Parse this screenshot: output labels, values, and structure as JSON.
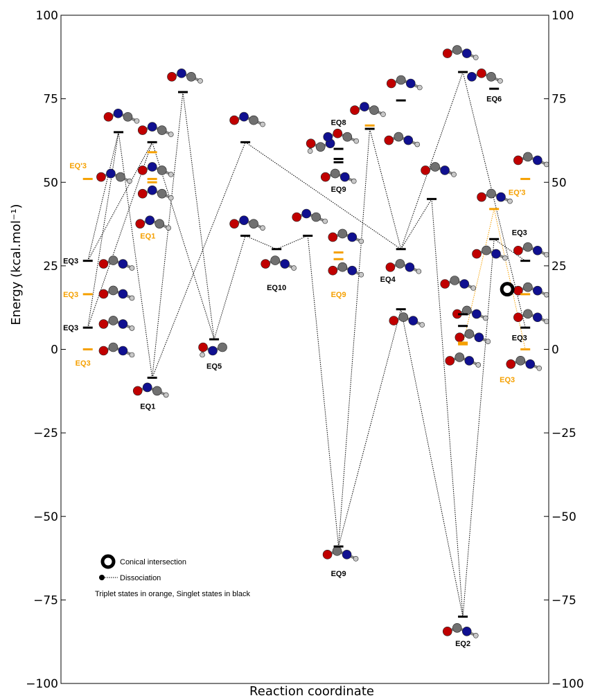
{
  "chart_data": {
    "type": "energy-diagram",
    "xlabel": "Reaction coordinate",
    "ylabel": "Energy (kcal.mol⁻¹)",
    "ylim": [
      -100,
      100
    ],
    "yticks": [
      -100,
      -75,
      -50,
      -25,
      0,
      25,
      50,
      75,
      100
    ],
    "ytick_labels": [
      "−100",
      "−75",
      "−50",
      "−25",
      "0",
      "25",
      "50",
      "75",
      "100"
    ],
    "x_range": [
      0,
      100
    ],
    "colors": {
      "singlet": "#000000",
      "triplet": "#f5a000",
      "N": "#101090",
      "O": "#c00000",
      "C": "#707070",
      "H": "#c8c8c8"
    },
    "levels": [
      {
        "id": "L1",
        "x": 5.5,
        "e": 26.5,
        "spin": "singlet"
      },
      {
        "id": "L2",
        "x": 5.5,
        "e": 16.5,
        "spin": "triplet"
      },
      {
        "id": "L3",
        "x": 5.5,
        "e": 6.5,
        "spin": "singlet"
      },
      {
        "id": "L4",
        "x": 5.5,
        "e": 0,
        "spin": "triplet"
      },
      {
        "id": "L5",
        "x": 5.5,
        "e": 51,
        "spin": "triplet"
      },
      {
        "id": "L6",
        "x": 11.8,
        "e": 65,
        "spin": "singlet"
      },
      {
        "id": "L7",
        "x": 18.7,
        "e": 62,
        "spin": "singlet"
      },
      {
        "id": "L8",
        "x": 18.7,
        "e": 59,
        "spin": "triplet"
      },
      {
        "id": "L9",
        "x": 18.7,
        "e": 51,
        "spin": "triplet"
      },
      {
        "id": "L10",
        "x": 18.7,
        "e": 50,
        "spin": "triplet"
      },
      {
        "id": "L11",
        "x": 18.7,
        "e": -8.5,
        "spin": "singlet"
      },
      {
        "id": "L12",
        "x": 25,
        "e": 77,
        "spin": "singlet"
      },
      {
        "id": "L13",
        "x": 31.4,
        "e": 3,
        "spin": "singlet"
      },
      {
        "id": "L14",
        "x": 37.8,
        "e": 62,
        "spin": "singlet"
      },
      {
        "id": "L15",
        "x": 37.8,
        "e": 34,
        "spin": "singlet"
      },
      {
        "id": "L16",
        "x": 44.2,
        "e": 30,
        "spin": "singlet"
      },
      {
        "id": "L17",
        "x": 50.6,
        "e": 34,
        "spin": "singlet"
      },
      {
        "id": "L18",
        "x": 56.9,
        "e": 60,
        "spin": "singlet"
      },
      {
        "id": "L19",
        "x": 56.9,
        "e": 57,
        "spin": "singlet"
      },
      {
        "id": "L20",
        "x": 56.9,
        "e": 56,
        "spin": "singlet"
      },
      {
        "id": "L21",
        "x": 56.9,
        "e": 29,
        "spin": "triplet"
      },
      {
        "id": "L22",
        "x": 56.9,
        "e": 27,
        "spin": "triplet"
      },
      {
        "id": "L23",
        "x": 56.9,
        "e": -59,
        "spin": "singlet"
      },
      {
        "id": "L24",
        "x": 63.3,
        "e": 67,
        "spin": "triplet"
      },
      {
        "id": "L25",
        "x": 63.3,
        "e": 66,
        "spin": "singlet"
      },
      {
        "id": "L26",
        "x": 69.7,
        "e": 74.5,
        "spin": "singlet"
      },
      {
        "id": "L27",
        "x": 69.7,
        "e": 30,
        "spin": "singlet"
      },
      {
        "id": "L28",
        "x": 69.7,
        "e": 12,
        "spin": "singlet"
      },
      {
        "id": "L29",
        "x": 76,
        "e": 45,
        "spin": "singlet"
      },
      {
        "id": "L30",
        "x": 82.4,
        "e": 83,
        "spin": "singlet"
      },
      {
        "id": "L31",
        "x": 82.4,
        "e": 10.5,
        "spin": "singlet"
      },
      {
        "id": "L32",
        "x": 82.4,
        "e": 7,
        "spin": "singlet"
      },
      {
        "id": "L33",
        "x": 82.4,
        "e": 2,
        "spin": "triplet"
      },
      {
        "id": "L34",
        "x": 82.4,
        "e": 1.5,
        "spin": "triplet"
      },
      {
        "id": "L35",
        "x": 82.4,
        "e": -80,
        "spin": "singlet"
      },
      {
        "id": "L36",
        "x": 88.8,
        "e": 78,
        "spin": "singlet"
      },
      {
        "id": "L37",
        "x": 88.8,
        "e": 42,
        "spin": "triplet"
      },
      {
        "id": "L38",
        "x": 88.8,
        "e": 33,
        "spin": "singlet"
      },
      {
        "id": "L39",
        "x": 95.2,
        "e": 51,
        "spin": "triplet"
      },
      {
        "id": "L40",
        "x": 95.2,
        "e": 26.5,
        "spin": "singlet"
      },
      {
        "id": "L41",
        "x": 95.2,
        "e": 16.5,
        "spin": "triplet"
      },
      {
        "id": "L42",
        "x": 95.2,
        "e": 6.5,
        "spin": "singlet"
      },
      {
        "id": "L43",
        "x": 95.2,
        "e": 0,
        "spin": "triplet"
      }
    ],
    "connections": [
      {
        "from": [
          5.5,
          26.5
        ],
        "to": [
          11.8,
          65
        ],
        "spin": "singlet"
      },
      {
        "from": [
          5.5,
          6.5
        ],
        "to": [
          11.8,
          65
        ],
        "spin": "singlet"
      },
      {
        "from": [
          11.8,
          65
        ],
        "to": [
          18.7,
          -8.5
        ],
        "spin": "singlet"
      },
      {
        "from": [
          5.5,
          26.5
        ],
        "to": [
          18.7,
          62
        ],
        "spin": "singlet"
      },
      {
        "from": [
          5.5,
          6.5
        ],
        "to": [
          18.7,
          62
        ],
        "spin": "singlet"
      },
      {
        "from": [
          18.7,
          62
        ],
        "to": [
          31.4,
          3
        ],
        "spin": "singlet"
      },
      {
        "from": [
          18.7,
          -8.5
        ],
        "to": [
          25,
          77
        ],
        "spin": "singlet"
      },
      {
        "from": [
          25,
          77
        ],
        "to": [
          31.4,
          3
        ],
        "spin": "singlet"
      },
      {
        "from": [
          18.7,
          -8.5
        ],
        "to": [
          37.8,
          62
        ],
        "spin": "singlet"
      },
      {
        "from": [
          31.4,
          3
        ],
        "to": [
          37.8,
          34
        ],
        "spin": "singlet"
      },
      {
        "from": [
          37.8,
          34
        ],
        "to": [
          44.2,
          30
        ],
        "spin": "singlet"
      },
      {
        "from": [
          44.2,
          30
        ],
        "to": [
          50.6,
          34
        ],
        "spin": "singlet"
      },
      {
        "from": [
          50.6,
          34
        ],
        "to": [
          56.9,
          -59
        ],
        "spin": "singlet"
      },
      {
        "from": [
          56.9,
          -59
        ],
        "to": [
          63.3,
          66
        ],
        "spin": "singlet"
      },
      {
        "from": [
          56.9,
          -59
        ],
        "to": [
          69.7,
          12
        ],
        "spin": "singlet"
      },
      {
        "from": [
          37.8,
          62
        ],
        "to": [
          69.7,
          30
        ],
        "spin": "singlet"
      },
      {
        "from": [
          63.3,
          66
        ],
        "to": [
          69.7,
          30
        ],
        "spin": "singlet"
      },
      {
        "from": [
          69.7,
          30
        ],
        "to": [
          76,
          45
        ],
        "spin": "singlet"
      },
      {
        "from": [
          69.7,
          30
        ],
        "to": [
          82.4,
          83
        ],
        "spin": "singlet"
      },
      {
        "from": [
          76,
          45
        ],
        "to": [
          82.4,
          -80
        ],
        "spin": "singlet"
      },
      {
        "from": [
          69.7,
          12
        ],
        "to": [
          82.4,
          -80
        ],
        "spin": "singlet"
      },
      {
        "from": [
          82.4,
          83
        ],
        "to": [
          95.2,
          6.5
        ],
        "spin": "singlet"
      },
      {
        "from": [
          82.4,
          -80
        ],
        "to": [
          88.8,
          33
        ],
        "spin": "singlet"
      },
      {
        "from": [
          88.8,
          33
        ],
        "to": [
          95.2,
          26.5
        ],
        "spin": "singlet"
      },
      {
        "from": [
          82.4,
          1.5
        ],
        "to": [
          88.8,
          42
        ],
        "spin": "triplet"
      },
      {
        "from": [
          88.8,
          42
        ],
        "to": [
          95.2,
          0
        ],
        "spin": "triplet"
      }
    ],
    "labels": [
      {
        "text": "EQ3",
        "x": 2,
        "e": 26.5,
        "spin": "singlet"
      },
      {
        "text": "EQ3",
        "x": 2,
        "e": 16.5,
        "spin": "triplet"
      },
      {
        "text": "EQ3",
        "x": 2,
        "e": 6.5,
        "spin": "singlet"
      },
      {
        "text": "EQ3",
        "x": 4.5,
        "e": -4,
        "spin": "triplet"
      },
      {
        "text": "EQ'3",
        "x": 3.5,
        "e": 55,
        "spin": "triplet"
      },
      {
        "text": "EQ1",
        "x": 17.8,
        "e": 34,
        "spin": "triplet"
      },
      {
        "text": "EQ1",
        "x": 17.8,
        "e": -17,
        "spin": "singlet"
      },
      {
        "text": "EQ5",
        "x": 31.4,
        "e": -5,
        "spin": "singlet"
      },
      {
        "text": "EQ10",
        "x": 44.2,
        "e": 18.5,
        "spin": "singlet"
      },
      {
        "text": "EQ8",
        "x": 56.9,
        "e": 68,
        "spin": "singlet"
      },
      {
        "text": "EQ9",
        "x": 56.9,
        "e": 48,
        "spin": "singlet"
      },
      {
        "text": "EQ9",
        "x": 56.9,
        "e": 16.5,
        "spin": "triplet"
      },
      {
        "text": "EQ9",
        "x": 56.9,
        "e": -67,
        "spin": "singlet"
      },
      {
        "text": "EQ4",
        "x": 67,
        "e": 21,
        "spin": "singlet"
      },
      {
        "text": "EQ6",
        "x": 88.8,
        "e": 75,
        "spin": "singlet"
      },
      {
        "text": "EQ2",
        "x": 82.4,
        "e": -88,
        "spin": "singlet"
      },
      {
        "text": "EQ'3",
        "x": 93.5,
        "e": 47,
        "spin": "triplet"
      },
      {
        "text": "EQ3",
        "x": 94,
        "e": 35,
        "spin": "singlet"
      },
      {
        "text": "EQ3",
        "x": 94,
        "e": 3.5,
        "spin": "singlet"
      },
      {
        "text": "EQ3",
        "x": 91.5,
        "e": -9,
        "spin": "triplet"
      }
    ],
    "conical_intersection": {
      "x": 91.5,
      "e": 18
    },
    "molecules": [
      {
        "x": 11,
        "e": 26,
        "atoms": [
          "O",
          "C",
          "N",
          "H"
        ],
        "dir": 1
      },
      {
        "x": 11,
        "e": 17,
        "atoms": [
          "O",
          "C",
          "N",
          "H"
        ],
        "dir": 1
      },
      {
        "x": 11,
        "e": 8,
        "atoms": [
          "O",
          "C",
          "N",
          "H"
        ],
        "dir": 1
      },
      {
        "x": 11,
        "e": 0,
        "atoms": [
          "O",
          "C",
          "N",
          "H"
        ],
        "dir": 1
      },
      {
        "x": 10.5,
        "e": 52,
        "atoms": [
          "O",
          "N",
          "C",
          "H"
        ],
        "dir": 1
      },
      {
        "x": 12,
        "e": 70,
        "atoms": [
          "O",
          "N",
          "C",
          "H"
        ],
        "dir": 1
      },
      {
        "x": 19,
        "e": 66,
        "atoms": [
          "O",
          "N",
          "C",
          "H"
        ],
        "dir": 1
      },
      {
        "x": 19,
        "e": 54,
        "atoms": [
          "O",
          "N",
          "C",
          "H"
        ],
        "dir": 1
      },
      {
        "x": 19,
        "e": 47,
        "atoms": [
          "O",
          "N",
          "C",
          "H"
        ],
        "dir": 1
      },
      {
        "x": 18.5,
        "e": 38,
        "atoms": [
          "O",
          "N",
          "C",
          "H"
        ],
        "dir": 1
      },
      {
        "x": 18,
        "e": -12,
        "atoms": [
          "O",
          "N",
          "C",
          "H"
        ],
        "dir": 1
      },
      {
        "x": 25,
        "e": 82,
        "atoms": [
          "O",
          "N",
          "C",
          "H"
        ],
        "dir": 1
      },
      {
        "x": 31.4,
        "e": 0,
        "atoms": [
          "H",
          "O",
          "N",
          "C"
        ],
        "dir": 1
      },
      {
        "x": 37.8,
        "e": 69,
        "atoms": [
          "O",
          "N",
          "C",
          "H"
        ],
        "dir": 1
      },
      {
        "x": 37.8,
        "e": 38,
        "atoms": [
          "O",
          "N",
          "C",
          "H"
        ],
        "dir": 1
      },
      {
        "x": 44.2,
        "e": 26,
        "atoms": [
          "O",
          "C",
          "N",
          "H"
        ],
        "dir": 1
      },
      {
        "x": 50.6,
        "e": 40,
        "atoms": [
          "O",
          "N",
          "C",
          "H"
        ],
        "dir": 1
      },
      {
        "x": 53.5,
        "e": 61,
        "atoms": [
          "H",
          "O",
          "C",
          "N"
        ],
        "dir": 1
      },
      {
        "x": 57,
        "e": 64,
        "atoms": [
          "N",
          "O",
          "C",
          "H"
        ],
        "dir": 1
      },
      {
        "x": 56.5,
        "e": 52,
        "atoms": [
          "O",
          "C",
          "N",
          "H"
        ],
        "dir": 1
      },
      {
        "x": 58,
        "e": 34,
        "atoms": [
          "O",
          "C",
          "N",
          "H"
        ],
        "dir": 1
      },
      {
        "x": 58,
        "e": 24,
        "atoms": [
          "O",
          "C",
          "N",
          "H"
        ],
        "dir": 1
      },
      {
        "x": 56.9,
        "e": -61,
        "atoms": [
          "O",
          "C",
          "N",
          "H"
        ],
        "dir": 1
      },
      {
        "x": 62.5,
        "e": 72,
        "atoms": [
          "O",
          "N",
          "C",
          "H"
        ],
        "dir": 1
      },
      {
        "x": 70,
        "e": 80,
        "atoms": [
          "O",
          "C",
          "N",
          "H"
        ],
        "dir": 1
      },
      {
        "x": 69.5,
        "e": 63,
        "atoms": [
          "O",
          "C",
          "N",
          "H"
        ],
        "dir": 1
      },
      {
        "x": 69.8,
        "e": 25,
        "atoms": [
          "O",
          "C",
          "N",
          "H"
        ],
        "dir": 1
      },
      {
        "x": 70.5,
        "e": 9,
        "atoms": [
          "O",
          "C",
          "N",
          "H"
        ],
        "dir": 1
      },
      {
        "x": 77,
        "e": 54,
        "atoms": [
          "O",
          "C",
          "N",
          "H"
        ],
        "dir": 1
      },
      {
        "x": 81.5,
        "e": 89,
        "atoms": [
          "O",
          "C",
          "N",
          "H"
        ],
        "dir": 1
      },
      {
        "x": 81,
        "e": 20,
        "atoms": [
          "O",
          "C",
          "N",
          "H"
        ],
        "dir": 1
      },
      {
        "x": 83.5,
        "e": 11,
        "atoms": [
          "O",
          "C",
          "N",
          "H"
        ],
        "dir": 1
      },
      {
        "x": 84,
        "e": 4,
        "atoms": [
          "O",
          "C",
          "N",
          "H"
        ],
        "dir": 1
      },
      {
        "x": 82,
        "e": -3,
        "atoms": [
          "O",
          "C",
          "N",
          "H"
        ],
        "dir": 1
      },
      {
        "x": 81.5,
        "e": -84,
        "atoms": [
          "O",
          "C",
          "N",
          "H"
        ],
        "dir": 1
      },
      {
        "x": 86.5,
        "e": 82,
        "atoms": [
          "N",
          "O",
          "C",
          "H"
        ],
        "dir": 1
      },
      {
        "x": 88.5,
        "e": 46,
        "atoms": [
          "O",
          "C",
          "N",
          "H"
        ],
        "dir": 1
      },
      {
        "x": 87.5,
        "e": 29,
        "atoms": [
          "O",
          "C",
          "N",
          "H"
        ],
        "dir": 1
      },
      {
        "x": 96,
        "e": 57,
        "atoms": [
          "O",
          "C",
          "N",
          "H"
        ],
        "dir": 1
      },
      {
        "x": 96,
        "e": 30,
        "atoms": [
          "O",
          "C",
          "N",
          "H"
        ],
        "dir": 1
      },
      {
        "x": 96,
        "e": 18,
        "atoms": [
          "O",
          "C",
          "N",
          "H"
        ],
        "dir": 1
      },
      {
        "x": 96,
        "e": 10,
        "atoms": [
          "O",
          "C",
          "N",
          "H"
        ],
        "dir": 1
      },
      {
        "x": 94.5,
        "e": -4,
        "atoms": [
          "O",
          "C",
          "N",
          "H"
        ],
        "dir": 1
      }
    ],
    "legend": {
      "placement": "bottom-left",
      "conical_intersection": "Conical intersection",
      "dissociation": "Dissociation",
      "note": "Triplet states in orange, Singlet states in black"
    }
  }
}
